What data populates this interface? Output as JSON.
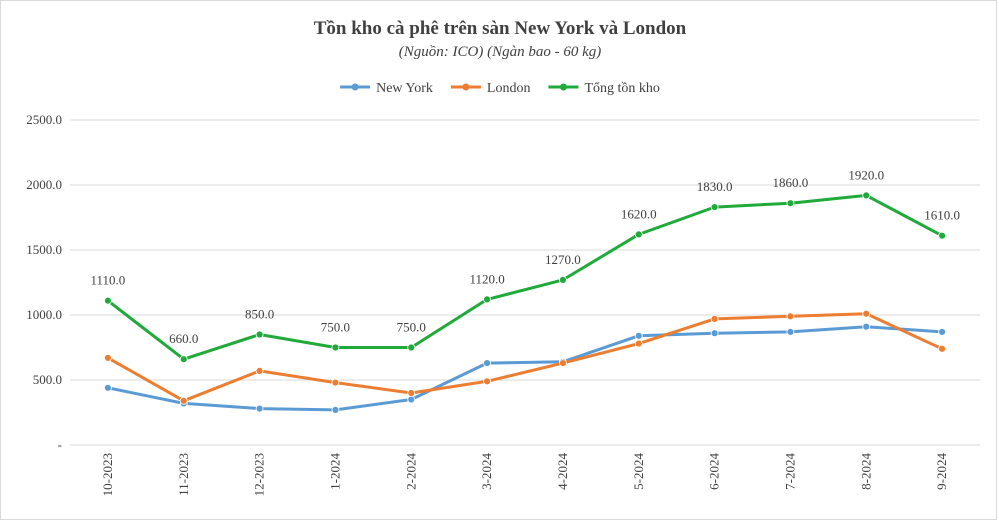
{
  "chart_data": {
    "type": "line",
    "title": "Tồn kho cà phê trên sàn New York và London",
    "subtitle": "(Nguồn: ICO) (Ngàn bao - 60 kg)",
    "categories": [
      "10-2023",
      "11-2023",
      "12-2023",
      "1-2024",
      "2-2024",
      "3-2024",
      "4-2024",
      "5-2024",
      "6-2024",
      "7-2024",
      "8-2024",
      "9-2024"
    ],
    "ylim": [
      0,
      2500
    ],
    "yticks": [
      0,
      500,
      1000,
      1500,
      2000,
      2500
    ],
    "ytick_labels": [
      "-",
      "500.0",
      "1000.0",
      "1500.0",
      "2000.0",
      "2500.0"
    ],
    "grid": true,
    "legend_position": "top-center",
    "series": [
      {
        "name": "New York",
        "color": "#5b9bd5",
        "values": [
          440,
          320,
          280,
          270,
          350,
          630,
          640,
          840,
          860,
          870,
          910,
          870
        ],
        "show_labels": false
      },
      {
        "name": "London",
        "color": "#ed7d31",
        "values": [
          670,
          340,
          570,
          480,
          400,
          490,
          630,
          780,
          970,
          990,
          1010,
          740
        ],
        "show_labels": false
      },
      {
        "name": "Tổng tồn kho",
        "color": "#1faa3a",
        "values": [
          1110,
          660,
          850,
          750,
          750,
          1120,
          1270,
          1620,
          1830,
          1860,
          1920,
          1610
        ],
        "show_labels": true,
        "labels": [
          "1110.0",
          "660.0",
          "850.0",
          "750.0",
          "750.0",
          "1120.0",
          "1270.0",
          "1620.0",
          "1830.0",
          "1860.0",
          "1920.0",
          "1610.0"
        ]
      }
    ]
  }
}
